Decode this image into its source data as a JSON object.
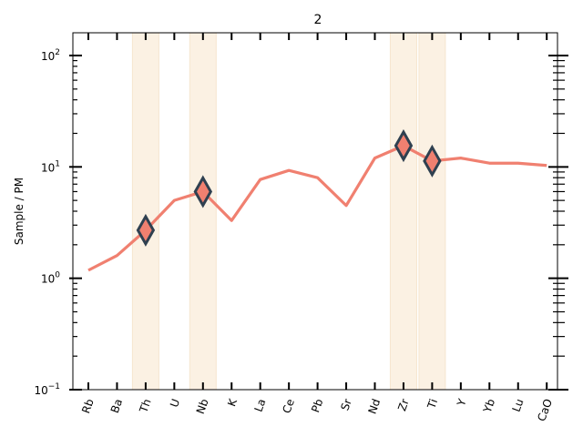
{
  "chart_data": {
    "type": "line",
    "title": "2",
    "xlabel": "",
    "ylabel": "Sample / PM",
    "yscale": "log",
    "ylim": [
      0.1,
      160
    ],
    "grid": false,
    "categories": [
      "Rb",
      "Ba",
      "Th",
      "U",
      "Nb",
      "K",
      "La",
      "Ce",
      "Pb",
      "Sr",
      "Nd",
      "Zr",
      "Ti",
      "Y",
      "Yb",
      "Lu",
      "CaO"
    ],
    "series": [
      {
        "values": [
          1.18,
          1.6,
          2.7,
          5.0,
          6.0,
          3.3,
          7.7,
          9.3,
          8.0,
          4.5,
          12.0,
          15.5,
          11.3,
          12.0,
          10.8,
          10.8,
          10.3
        ],
        "color": "#f08070"
      }
    ],
    "highlighted_categories": [
      "Th",
      "Nb",
      "Zr",
      "Ti"
    ],
    "highlight_color": "#fbf1e3",
    "marker_color": "#f08070",
    "marker_edge_color": "#2f4050",
    "y_tick_labels": [
      {
        "value": 0.1,
        "base": "10",
        "exp": "−1"
      },
      {
        "value": 1,
        "base": "10",
        "exp": "0"
      },
      {
        "value": 10,
        "base": "10",
        "exp": "1"
      },
      {
        "value": 100,
        "base": "10",
        "exp": "2"
      }
    ]
  }
}
